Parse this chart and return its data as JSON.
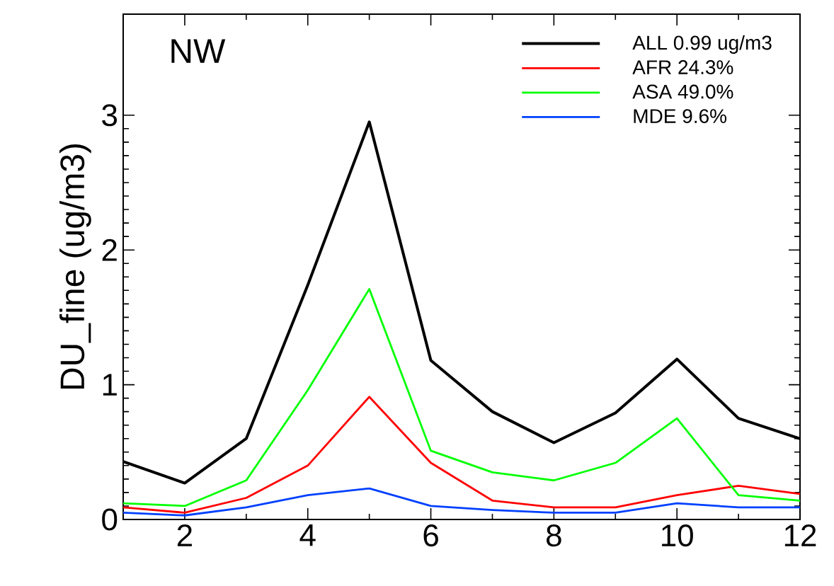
{
  "chart_data": {
    "type": "line",
    "ylabel": "DU_fine (ug/m3)",
    "annotations": [
      "NW"
    ],
    "x": [
      1,
      2,
      3,
      4,
      5,
      6,
      7,
      8,
      9,
      10,
      11,
      12
    ],
    "xlim": [
      1,
      12
    ],
    "xticks": [
      2,
      4,
      6,
      8,
      10,
      12
    ],
    "ylim": [
      0,
      3.75
    ],
    "yticks": [
      0,
      1,
      2,
      3
    ],
    "legend": "top right",
    "grid": false,
    "series": [
      {
        "name": "ALL 0.99 ug/m3",
        "color": "#000000",
        "values": [
          0.43,
          0.27,
          0.6,
          1.74,
          2.95,
          1.18,
          0.8,
          0.57,
          0.79,
          1.19,
          0.75,
          0.6
        ]
      },
      {
        "name": "AFR 24.3%",
        "color": "#ff0000",
        "values": [
          0.09,
          0.05,
          0.16,
          0.4,
          0.91,
          0.42,
          0.14,
          0.09,
          0.09,
          0.18,
          0.25,
          0.19
        ]
      },
      {
        "name": "ASA 49.0%",
        "color": "#00ff00",
        "values": [
          0.12,
          0.1,
          0.29,
          0.96,
          1.71,
          0.51,
          0.35,
          0.29,
          0.42,
          0.75,
          0.18,
          0.14
        ]
      },
      {
        "name": "MDE  9.6%",
        "color": "#0040ff",
        "values": [
          0.05,
          0.03,
          0.09,
          0.18,
          0.23,
          0.1,
          0.07,
          0.05,
          0.05,
          0.12,
          0.09,
          0.09
        ]
      }
    ]
  }
}
